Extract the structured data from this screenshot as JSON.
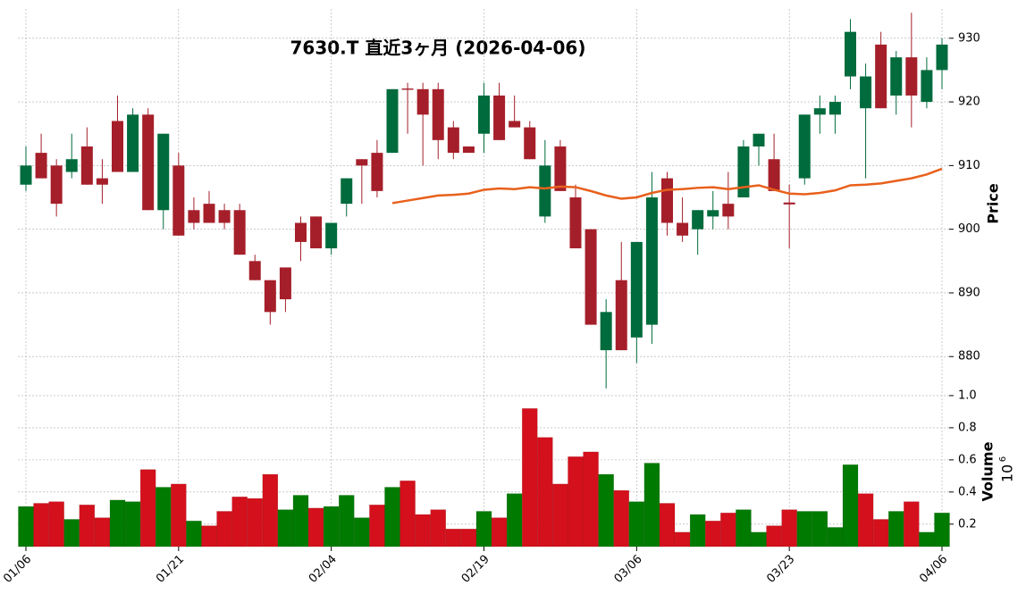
{
  "chart_data": {
    "type": "candlestick",
    "title": "7630.T  直近3ヶ月  (2026-04-06)",
    "ylabel": "Price",
    "categories": [
      "01/06",
      null,
      null,
      null,
      null,
      null,
      null,
      null,
      null,
      null,
      "01/21",
      null,
      null,
      null,
      null,
      null,
      null,
      null,
      null,
      null,
      "02/04",
      null,
      null,
      null,
      null,
      null,
      null,
      null,
      null,
      null,
      "02/19",
      null,
      null,
      null,
      null,
      null,
      null,
      null,
      null,
      null,
      "03/06",
      null,
      null,
      null,
      null,
      null,
      null,
      null,
      null,
      null,
      "03/23",
      null,
      null,
      null,
      null,
      null,
      null,
      null,
      null,
      null,
      "04/06"
    ],
    "open": [
      907,
      912,
      910,
      909,
      913,
      908,
      917,
      909,
      918,
      903,
      910,
      903,
      904,
      903,
      903,
      895,
      892,
      894,
      901,
      902,
      897,
      904,
      911,
      912,
      912,
      922.1,
      922,
      922,
      916,
      913,
      915,
      921,
      917,
      916,
      902,
      913,
      905,
      900,
      881,
      892,
      883,
      885,
      908,
      901,
      900,
      902,
      904,
      905,
      913,
      911,
      904.2,
      908,
      918,
      918,
      924,
      919,
      929,
      921,
      927,
      920,
      925
    ],
    "high": [
      913,
      915,
      911,
      915,
      916,
      911,
      921,
      919,
      919,
      915,
      912,
      905,
      906,
      904,
      904,
      896,
      892,
      894,
      902,
      902,
      901,
      908,
      911,
      914,
      922,
      923,
      923,
      923,
      917,
      913,
      923,
      923,
      921,
      917,
      914,
      914,
      907,
      900,
      889,
      898,
      898,
      909,
      909,
      905,
      903,
      906,
      909,
      914,
      915,
      915,
      907,
      918,
      921,
      921,
      933,
      926,
      931,
      928,
      934,
      927,
      930
    ],
    "low": [
      906,
      908,
      902,
      908,
      907,
      904,
      909,
      909,
      903,
      900,
      899,
      900,
      901,
      900,
      896,
      892,
      885,
      887,
      895,
      897,
      896,
      902,
      904,
      905,
      912,
      915,
      910,
      911,
      911,
      912,
      912,
      914,
      916,
      911,
      901,
      906,
      897,
      885,
      875,
      881,
      879,
      882,
      899,
      898,
      896,
      900,
      900,
      905,
      910,
      906,
      897,
      907,
      915,
      915,
      922,
      908,
      919,
      918,
      916,
      919,
      922
    ],
    "close": [
      910,
      908,
      904,
      911,
      907,
      907,
      909,
      918,
      903,
      915,
      899,
      901,
      901,
      901,
      896,
      892,
      887,
      889,
      898,
      897,
      901,
      908,
      910,
      906,
      922,
      921.9,
      918,
      914,
      912,
      912,
      921,
      914,
      916,
      911,
      910,
      906,
      897,
      885,
      887,
      881,
      898,
      905,
      901,
      899,
      903,
      903,
      902,
      913,
      915,
      906,
      903.9,
      918,
      919,
      920,
      931,
      924,
      919,
      927,
      921,
      925,
      929
    ],
    "up_color": "#006b3c",
    "down_color": "#a51f2a",
    "ylim": [
      874.7,
      934.6
    ],
    "yticks": [
      880,
      890,
      900,
      910,
      920,
      930
    ],
    "grid": true,
    "ma": {
      "color": "#e8601c",
      "values": [
        null,
        null,
        null,
        null,
        null,
        null,
        null,
        null,
        null,
        null,
        null,
        null,
        null,
        null,
        null,
        null,
        null,
        null,
        null,
        null,
        null,
        null,
        null,
        null,
        904.1,
        904.5,
        904.9,
        905.3,
        905.4,
        905.6,
        906.2,
        906.4,
        906.3,
        906.6,
        906.4,
        906.7,
        906.6,
        906.0,
        905.3,
        904.8,
        905.0,
        905.7,
        906.2,
        906.3,
        906.5,
        906.6,
        906.3,
        906.6,
        906.9,
        906.2,
        905.6,
        905.5,
        905.7,
        906.1,
        906.9,
        907.0,
        907.2,
        907.6,
        908.0,
        908.6,
        909.5
      ]
    },
    "volume": {
      "ylabel": "Volume",
      "offset_base": "10",
      "offset_exp": "6",
      "values": [
        0.31,
        0.33,
        0.34,
        0.23,
        0.32,
        0.24,
        0.35,
        0.34,
        0.54,
        0.43,
        0.45,
        0.22,
        0.19,
        0.28,
        0.37,
        0.36,
        0.51,
        0.29,
        0.38,
        0.3,
        0.31,
        0.38,
        0.24,
        0.32,
        0.43,
        0.47,
        0.26,
        0.29,
        0.17,
        0.17,
        0.28,
        0.24,
        0.39,
        0.92,
        0.74,
        0.45,
        0.62,
        0.65,
        0.51,
        0.41,
        0.34,
        0.58,
        0.33,
        0.15,
        0.26,
        0.22,
        0.27,
        0.29,
        0.15,
        0.19,
        0.29,
        0.28,
        0.28,
        0.18,
        0.57,
        0.39,
        0.23,
        0.28,
        0.34,
        0.15,
        0.27
      ],
      "colors": [
        "#007a00",
        "#d3101b",
        "#d3101b",
        "#007a00",
        "#d3101b",
        "#d3101b",
        "#007a00",
        "#007a00",
        "#d3101b",
        "#007a00",
        "#d3101b",
        "#007a00",
        "#d3101b",
        "#d3101b",
        "#d3101b",
        "#d3101b",
        "#d3101b",
        "#007a00",
        "#007a00",
        "#d3101b",
        "#007a00",
        "#007a00",
        "#007a00",
        "#d3101b",
        "#007a00",
        "#d3101b",
        "#d3101b",
        "#d3101b",
        "#d3101b",
        "#d3101b",
        "#007a00",
        "#d3101b",
        "#007a00",
        "#d3101b",
        "#d3101b",
        "#d3101b",
        "#d3101b",
        "#d3101b",
        "#007a00",
        "#d3101b",
        "#007a00",
        "#007a00",
        "#d3101b",
        "#d3101b",
        "#007a00",
        "#d3101b",
        "#d3101b",
        "#007a00",
        "#007a00",
        "#d3101b",
        "#d3101b",
        "#007a00",
        "#007a00",
        "#007a00",
        "#007a00",
        "#d3101b",
        "#d3101b",
        "#007a00",
        "#d3101b",
        "#007a00",
        "#007a00"
      ],
      "ylim": [
        0.06,
        1.033
      ],
      "yticks": [
        0.2,
        0.4,
        0.6,
        0.8,
        {
          "value": 1,
          "label": "1.0"
        }
      ]
    }
  }
}
